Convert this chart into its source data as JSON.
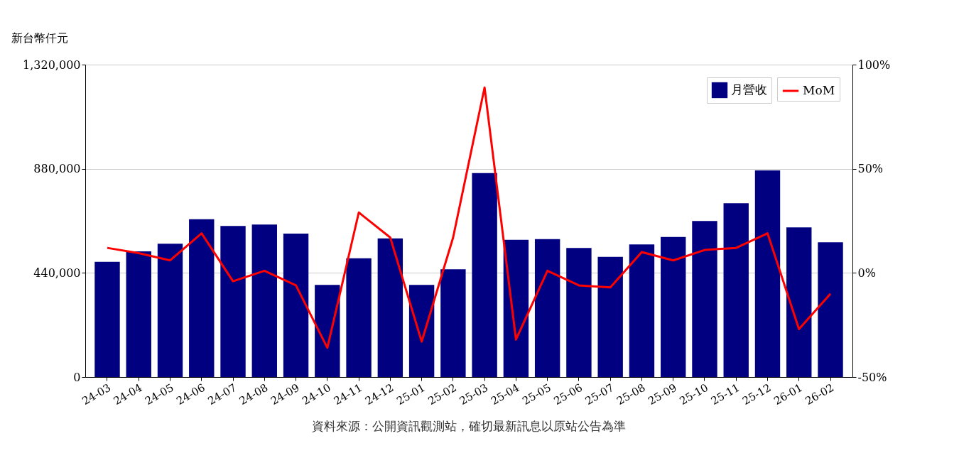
{
  "chart_data": {
    "type": "bar",
    "ylabel": "新台幣仟元",
    "categories": [
      "24-03",
      "24-04",
      "24-05",
      "24-06",
      "24-07",
      "24-08",
      "24-09",
      "24-10",
      "24-11",
      "24-12",
      "25-01",
      "25-02",
      "25-03",
      "25-04",
      "25-05",
      "25-06",
      "25-07",
      "25-08",
      "25-09",
      "25-10",
      "25-11",
      "25-12",
      "26-01",
      "26-02"
    ],
    "series": [
      {
        "name": "月營收",
        "color": "#000080",
        "values": [
          487000,
          531000,
          563000,
          667000,
          638000,
          644000,
          606000,
          389000,
          502000,
          586000,
          389000,
          455000,
          862000,
          580000,
          583000,
          545000,
          508000,
          560000,
          592000,
          659000,
          734000,
          873000,
          632000,
          569000
        ]
      },
      {
        "name": "MoM",
        "type": "line",
        "axis": "y2",
        "color": "#ff0000",
        "values": [
          12,
          9.5,
          6,
          19,
          -4,
          1,
          -6,
          -36,
          29,
          17,
          -33,
          17,
          89,
          -32,
          1,
          -6,
          -7,
          10,
          6,
          11,
          12,
          19,
          -27,
          -10
        ]
      }
    ],
    "ylim": [
      0,
      1320000
    ],
    "yticks": [
      0,
      {
        "value": 440000,
        "label": "440,000"
      },
      {
        "value": 880000,
        "label": "880,000"
      },
      {
        "value": 1320000,
        "label": "1,320,000"
      }
    ],
    "y2lim": [
      -50,
      100
    ],
    "y2ticks": [
      {
        "value": -50,
        "label": "-50%"
      },
      {
        "value": 0,
        "label": "0%"
      },
      {
        "value": 50,
        "label": "50%"
      },
      {
        "value": 100,
        "label": "100%"
      }
    ],
    "grid": "y",
    "legend": "top right",
    "annotations": [
      "資料來源：公開資訊觀測站，確切最新訊息以原站公告為準"
    ]
  }
}
